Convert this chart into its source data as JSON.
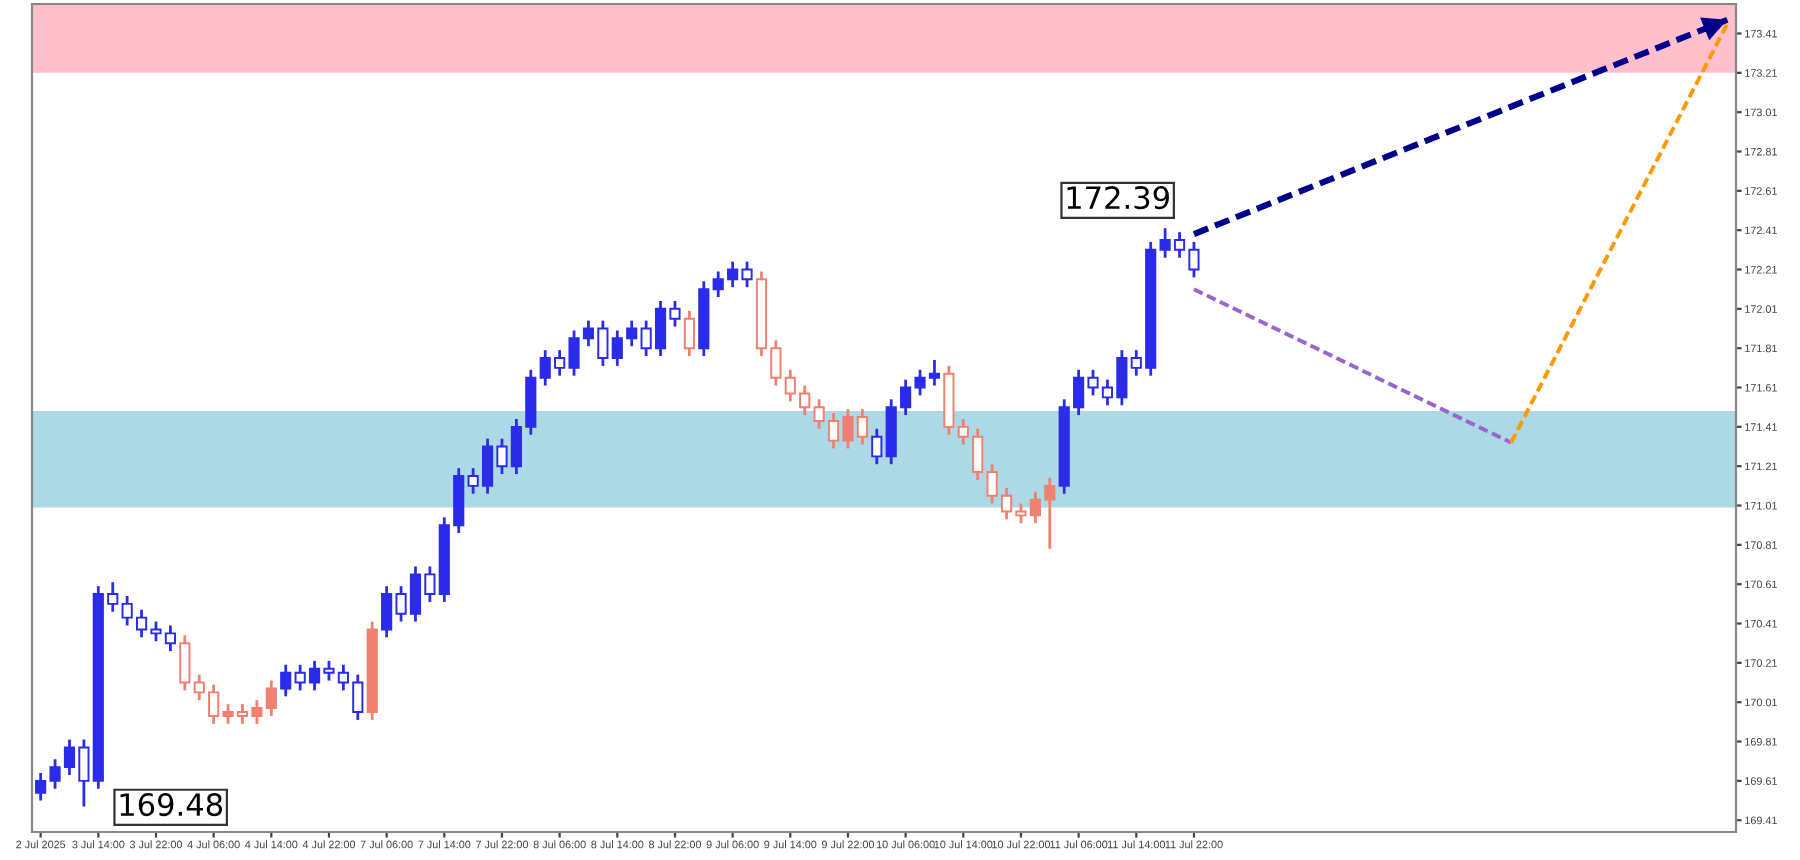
{
  "chart_data": {
    "type": "candlestick",
    "categories": [
      "2 Jul 2025",
      null,
      null,
      null,
      "3 Jul 14:00",
      null,
      null,
      null,
      "3 Jul 22:00",
      null,
      null,
      null,
      "4 Jul 06:00",
      null,
      null,
      null,
      "4 Jul 14:00",
      null,
      null,
      null,
      "4 Jul 22:00",
      null,
      null,
      null,
      "7 Jul 06:00",
      null,
      null,
      null,
      "7 Jul 14:00",
      null,
      null,
      null,
      "7 Jul 22:00",
      null,
      null,
      null,
      "8 Jul 06:00",
      null,
      null,
      null,
      "8 Jul 14:00",
      null,
      null,
      null,
      "8 Jul 22:00",
      null,
      null,
      null,
      "9 Jul 06:00",
      null,
      null,
      null,
      "9 Jul 14:00",
      null,
      null,
      null,
      "9 Jul 22:00",
      null,
      null,
      null,
      "10 Jul 06:00",
      null,
      null,
      null,
      "10 Jul 14:00",
      null,
      null,
      null,
      "10 Jul 22:00",
      null,
      null,
      null,
      "11 Jul 06:00",
      null,
      null,
      null,
      "11 Jul 14:00",
      null,
      null,
      null,
      "11 Jul 22:00",
      null,
      null,
      null,
      null,
      null,
      null,
      null,
      null,
      null,
      null,
      null,
      null,
      null,
      null,
      null,
      null,
      null,
      null,
      null,
      null,
      null,
      null,
      null,
      null,
      null,
      null,
      null,
      null,
      null,
      null,
      null,
      null,
      null,
      null,
      null,
      null,
      null
    ],
    "ohlc": [
      [
        169.55,
        169.65,
        169.51,
        169.61
      ],
      [
        169.61,
        169.72,
        169.57,
        169.68
      ],
      [
        169.68,
        169.82,
        169.64,
        169.78
      ],
      [
        169.78,
        169.82,
        169.48,
        169.61
      ],
      [
        169.61,
        170.6,
        169.57,
        170.56
      ],
      [
        170.56,
        170.62,
        170.47,
        170.51
      ],
      [
        170.51,
        170.55,
        170.4,
        170.44
      ],
      [
        170.44,
        170.48,
        170.34,
        170.38
      ],
      [
        170.38,
        170.42,
        170.32,
        170.36
      ],
      [
        170.36,
        170.4,
        170.27,
        170.31
      ],
      [
        170.31,
        170.35,
        170.07,
        170.11
      ],
      [
        170.11,
        170.15,
        170.02,
        170.06
      ],
      [
        170.06,
        170.1,
        169.9,
        169.94
      ],
      [
        169.94,
        170.0,
        169.9,
        169.96
      ],
      [
        169.96,
        170.0,
        169.9,
        169.94
      ],
      [
        169.94,
        170.02,
        169.9,
        169.98
      ],
      [
        169.98,
        170.12,
        169.94,
        170.08
      ],
      [
        170.08,
        170.2,
        170.04,
        170.16
      ],
      [
        170.16,
        170.2,
        170.07,
        170.11
      ],
      [
        170.11,
        170.22,
        170.07,
        170.18
      ],
      [
        170.18,
        170.22,
        170.12,
        170.16
      ],
      [
        170.16,
        170.2,
        170.07,
        170.11
      ],
      [
        170.11,
        170.15,
        169.92,
        169.96
      ],
      [
        169.96,
        170.42,
        169.92,
        170.38
      ],
      [
        170.38,
        170.6,
        170.34,
        170.56
      ],
      [
        170.56,
        170.6,
        170.42,
        170.46
      ],
      [
        170.46,
        170.7,
        170.42,
        170.66
      ],
      [
        170.66,
        170.7,
        170.52,
        170.56
      ],
      [
        170.56,
        170.95,
        170.52,
        170.91
      ],
      [
        170.91,
        171.2,
        170.87,
        171.16
      ],
      [
        171.16,
        171.2,
        171.07,
        171.11
      ],
      [
        171.11,
        171.35,
        171.07,
        171.31
      ],
      [
        171.31,
        171.35,
        171.17,
        171.21
      ],
      [
        171.21,
        171.45,
        171.17,
        171.41
      ],
      [
        171.41,
        171.7,
        171.37,
        171.66
      ],
      [
        171.66,
        171.8,
        171.62,
        171.76
      ],
      [
        171.76,
        171.8,
        171.67,
        171.71
      ],
      [
        171.71,
        171.9,
        171.67,
        171.86
      ],
      [
        171.86,
        171.95,
        171.82,
        171.91
      ],
      [
        171.91,
        171.95,
        171.72,
        171.76
      ],
      [
        171.76,
        171.9,
        171.72,
        171.86
      ],
      [
        171.86,
        171.95,
        171.82,
        171.91
      ],
      [
        171.91,
        171.95,
        171.77,
        171.81
      ],
      [
        171.81,
        172.05,
        171.77,
        172.01
      ],
      [
        172.01,
        172.05,
        171.92,
        171.96
      ],
      [
        171.96,
        172.0,
        171.77,
        171.81
      ],
      [
        171.81,
        172.15,
        171.77,
        172.11
      ],
      [
        172.11,
        172.2,
        172.07,
        172.16
      ],
      [
        172.16,
        172.25,
        172.12,
        172.21
      ],
      [
        172.21,
        172.25,
        172.12,
        172.16
      ],
      [
        172.16,
        172.2,
        171.77,
        171.81
      ],
      [
        171.81,
        171.85,
        171.62,
        171.66
      ],
      [
        171.66,
        171.7,
        171.54,
        171.58
      ],
      [
        171.58,
        171.62,
        171.47,
        171.51
      ],
      [
        171.51,
        171.55,
        171.4,
        171.44
      ],
      [
        171.44,
        171.48,
        171.3,
        171.34
      ],
      [
        171.34,
        171.5,
        171.3,
        171.46
      ],
      [
        171.46,
        171.5,
        171.32,
        171.36
      ],
      [
        171.36,
        171.4,
        171.22,
        171.26
      ],
      [
        171.26,
        171.55,
        171.22,
        171.51
      ],
      [
        171.51,
        171.65,
        171.47,
        171.61
      ],
      [
        171.61,
        171.7,
        171.57,
        171.66
      ],
      [
        171.66,
        171.75,
        171.62,
        171.68
      ],
      [
        171.68,
        171.72,
        171.37,
        171.41
      ],
      [
        171.41,
        171.45,
        171.32,
        171.36
      ],
      [
        171.36,
        171.4,
        171.14,
        171.18
      ],
      [
        171.18,
        171.22,
        171.02,
        171.06
      ],
      [
        171.06,
        171.1,
        170.94,
        170.98
      ],
      [
        170.98,
        171.02,
        170.92,
        170.96
      ],
      [
        170.96,
        171.08,
        170.92,
        171.04
      ],
      [
        171.04,
        171.15,
        170.79,
        171.11
      ],
      [
        171.11,
        171.55,
        171.07,
        171.51
      ],
      [
        171.51,
        171.7,
        171.47,
        171.66
      ],
      [
        171.66,
        171.7,
        171.57,
        171.61
      ],
      [
        171.61,
        171.65,
        171.52,
        171.56
      ],
      [
        171.56,
        171.8,
        171.52,
        171.76
      ],
      [
        171.76,
        171.8,
        171.67,
        171.71
      ],
      [
        171.71,
        172.35,
        171.67,
        172.31
      ],
      [
        172.31,
        172.42,
        172.27,
        172.36
      ],
      [
        172.36,
        172.4,
        172.27,
        172.31
      ],
      [
        172.31,
        172.35,
        172.17,
        172.21
      ],
      null,
      null,
      null,
      null,
      null,
      null,
      null,
      null,
      null,
      null,
      null,
      null,
      null,
      null,
      null,
      null,
      null,
      null,
      null,
      null,
      null,
      null,
      null,
      null,
      null,
      null,
      null,
      null,
      null,
      null,
      null,
      null,
      null,
      null,
      null,
      null,
      null
    ],
    "colors": [
      "#2b2bea",
      "#2b2bea",
      "#2b2bea",
      "#2b2bea",
      "#2b2bea",
      "#2b2bea",
      "#2b2bea",
      "#2b2bea",
      "#2b2bea",
      "#2b2bea",
      "#f08070",
      "#f08070",
      "#f08070",
      "#f08070",
      "#f08070",
      "#f08070",
      "#f08070",
      "#2b2bea",
      "#2b2bea",
      "#2b2bea",
      "#2b2bea",
      "#2b2bea",
      "#2b2bea",
      "#f08070",
      "#2b2bea",
      "#2b2bea",
      "#2b2bea",
      "#2b2bea",
      "#2b2bea",
      "#2b2bea",
      "#2b2bea",
      "#2b2bea",
      "#2b2bea",
      "#2b2bea",
      "#2b2bea",
      "#2b2bea",
      "#2b2bea",
      "#2b2bea",
      "#2b2bea",
      "#2b2bea",
      "#2b2bea",
      "#2b2bea",
      "#2b2bea",
      "#2b2bea",
      "#2b2bea",
      "#f08070",
      "#2b2bea",
      "#2b2bea",
      "#2b2bea",
      "#2b2bea",
      "#f08070",
      "#f08070",
      "#f08070",
      "#f08070",
      "#f08070",
      "#f08070",
      "#f08070",
      "#f08070",
      "#2b2bea",
      "#2b2bea",
      "#2b2bea",
      "#2b2bea",
      "#2b2bea",
      "#f08070",
      "#f08070",
      "#f08070",
      "#f08070",
      "#f08070",
      "#f08070",
      "#f08070",
      "#f08070",
      "#2b2bea",
      "#2b2bea",
      "#2b2bea",
      "#2b2bea",
      "#2b2bea",
      "#2b2bea",
      "#2b2bea",
      "#2b2bea",
      "#2b2bea",
      "#2b2bea",
      null,
      null,
      null,
      null,
      null,
      null,
      null,
      null,
      null,
      null,
      null,
      null,
      null,
      null,
      null,
      null,
      null,
      null,
      null,
      null,
      null,
      null,
      null,
      null,
      null,
      null,
      null,
      null,
      null,
      null,
      null,
      null,
      null,
      null,
      null,
      null,
      null
    ],
    "series": [
      {
        "type": "line",
        "color": "#00008b",
        "line_style": "dashed",
        "values": [
          null,
          null,
          null,
          null,
          null,
          null,
          null,
          null,
          null,
          null,
          null,
          null,
          null,
          null,
          null,
          null,
          null,
          null,
          null,
          null,
          null,
          null,
          null,
          null,
          null,
          null,
          null,
          null,
          null,
          null,
          null,
          null,
          null,
          null,
          null,
          null,
          null,
          null,
          null,
          null,
          null,
          null,
          null,
          null,
          null,
          null,
          null,
          null,
          null,
          null,
          null,
          null,
          null,
          null,
          null,
          null,
          null,
          null,
          null,
          null,
          null,
          null,
          null,
          null,
          null,
          null,
          null,
          null,
          null,
          null,
          null,
          null,
          null,
          null,
          null,
          null,
          null,
          null,
          null,
          null,
          172.39,
          null,
          null,
          null,
          null,
          null,
          null,
          null,
          null,
          null,
          null,
          null,
          null,
          null,
          null,
          null,
          null,
          null,
          null,
          null,
          null,
          null,
          null,
          null,
          null,
          null,
          null,
          null,
          null,
          null,
          null,
          null,
          null,
          null,
          null,
          null,
          null,
          173.48
        ]
      },
      {
        "type": "line",
        "color": "#9966cc",
        "line_style": "dashed",
        "values": [
          null,
          null,
          null,
          null,
          null,
          null,
          null,
          null,
          null,
          null,
          null,
          null,
          null,
          null,
          null,
          null,
          null,
          null,
          null,
          null,
          null,
          null,
          null,
          null,
          null,
          null,
          null,
          null,
          null,
          null,
          null,
          null,
          null,
          null,
          null,
          null,
          null,
          null,
          null,
          null,
          null,
          null,
          null,
          null,
          null,
          null,
          null,
          null,
          null,
          null,
          null,
          null,
          null,
          null,
          null,
          null,
          null,
          null,
          null,
          null,
          null,
          null,
          null,
          null,
          null,
          null,
          null,
          null,
          null,
          null,
          null,
          null,
          null,
          null,
          null,
          null,
          null,
          null,
          null,
          null,
          172.11,
          null,
          null,
          null,
          null,
          null,
          null,
          null,
          null,
          null,
          null,
          null,
          null,
          null,
          null,
          null,
          null,
          null,
          null,
          null,
          null,
          null,
          171.33,
          null,
          null,
          null,
          null,
          null,
          null,
          null,
          null,
          null,
          null,
          null,
          null,
          null,
          null,
          null
        ]
      },
      {
        "type": "line",
        "color": "#ff9900",
        "line_style": "dashed",
        "values": [
          null,
          null,
          null,
          null,
          null,
          null,
          null,
          null,
          null,
          null,
          null,
          null,
          null,
          null,
          null,
          null,
          null,
          null,
          null,
          null,
          null,
          null,
          null,
          null,
          null,
          null,
          null,
          null,
          null,
          null,
          null,
          null,
          null,
          null,
          null,
          null,
          null,
          null,
          null,
          null,
          null,
          null,
          null,
          null,
          null,
          null,
          null,
          null,
          null,
          null,
          null,
          null,
          null,
          null,
          null,
          null,
          null,
          null,
          null,
          null,
          null,
          null,
          null,
          null,
          null,
          null,
          null,
          null,
          null,
          null,
          null,
          null,
          null,
          null,
          null,
          null,
          null,
          null,
          null,
          null,
          null,
          null,
          null,
          null,
          null,
          null,
          null,
          null,
          null,
          null,
          null,
          null,
          null,
          null,
          null,
          null,
          null,
          null,
          null,
          null,
          null,
          null,
          171.33,
          null,
          null,
          null,
          null,
          null,
          null,
          null,
          null,
          null,
          null,
          null,
          null,
          null,
          null,
          173.46
        ]
      }
    ],
    "bands": [
      {
        "axis": "y",
        "from": 171.0,
        "to": 171.49,
        "color": "#add8e6"
      },
      {
        "axis": "y",
        "from": 173.21,
        "to": 173.56,
        "color": "#ffc0cb"
      }
    ],
    "annotations": [
      "172.39",
      "169.48"
    ],
    "ylim": [
      169.35,
      173.56
    ],
    "yticks": [
      169.41,
      169.61,
      169.81,
      170.01,
      170.21,
      170.41,
      170.61,
      170.81,
      171.01,
      171.21,
      171.41,
      171.61,
      171.81,
      172.01,
      172.21,
      172.41,
      172.61,
      172.81,
      173.01,
      173.21,
      173.41
    ],
    "grid": false,
    "legend": false
  }
}
